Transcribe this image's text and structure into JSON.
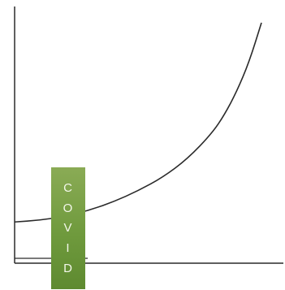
{
  "chart_data": {
    "type": "line",
    "title": "",
    "xlabel": "",
    "ylabel": "",
    "grid": false,
    "legend": "none",
    "xlim": [
      0,
      100
    ],
    "ylim": [
      0,
      100
    ],
    "series": [
      {
        "x": [
          0,
          10,
          20,
          30,
          40,
          50,
          60,
          70,
          80,
          85,
          90,
          95,
          100
        ],
        "y": [
          16.8,
          17.5,
          19,
          21.5,
          25,
          29.5,
          35,
          42.5,
          53,
          60.5,
          70,
          82,
          98
        ]
      }
    ],
    "baseline": {
      "y": 0.9
    },
    "annotation": {
      "letters": [
        "C",
        "O",
        "V",
        "I",
        "D"
      ],
      "x_range": [
        14.8,
        28.4
      ],
      "color": "#6f9a3d"
    },
    "axis_color": "#2a2a2a",
    "line_color": "#2a2a2a"
  }
}
